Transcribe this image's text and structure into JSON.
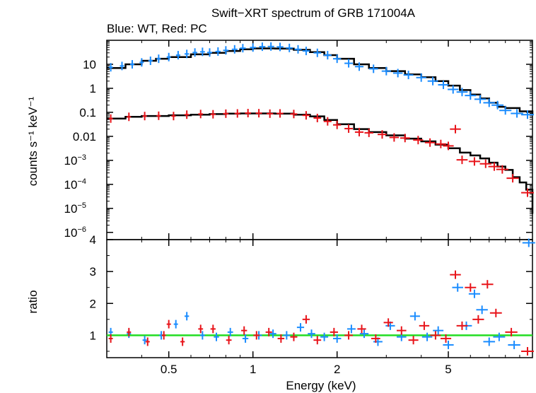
{
  "chart_data": [
    {
      "id": "spectrum",
      "type": "scatter",
      "title": "Swift−XRT spectrum of GRB 171004A",
      "subtitle": "Blue: WT, Red: PC",
      "xlabel": "Energy (keV)",
      "ylabel": "counts s⁻¹ keV⁻¹",
      "xscale": "log",
      "yscale": "log",
      "xlim": [
        0.3,
        10
      ],
      "ylim": [
        5e-07,
        100
      ],
      "grid": false,
      "yticks": [
        {
          "value": 10,
          "label": "10",
          "html": false
        },
        {
          "value": 1,
          "label": "1",
          "html": false
        },
        {
          "value": 0.1,
          "label": "0.1",
          "html": false
        },
        {
          "value": 0.01,
          "label": "0.01",
          "html": false
        },
        {
          "value": 0.001,
          "label": "10",
          "exp": "−3"
        },
        {
          "value": 0.0001,
          "label": "10",
          "exp": "−4"
        },
        {
          "value": 1e-05,
          "label": "10",
          "exp": "−5"
        },
        {
          "value": 1e-06,
          "label": "10",
          "exp": "−6"
        }
      ],
      "series": [
        {
          "name": "WT",
          "color": "#1a8cff",
          "points": [
            [
              0.31,
              7.5
            ],
            [
              0.34,
              8.5
            ],
            [
              0.37,
              10
            ],
            [
              0.4,
              12
            ],
            [
              0.43,
              14
            ],
            [
              0.46,
              17
            ],
            [
              0.5,
              20
            ],
            [
              0.54,
              24
            ],
            [
              0.58,
              27
            ],
            [
              0.62,
              31
            ],
            [
              0.66,
              33
            ],
            [
              0.7,
              31
            ],
            [
              0.75,
              34
            ],
            [
              0.8,
              38
            ],
            [
              0.86,
              42
            ],
            [
              0.92,
              47
            ],
            [
              1.0,
              50
            ],
            [
              1.08,
              54
            ],
            [
              1.16,
              55
            ],
            [
              1.25,
              53
            ],
            [
              1.35,
              48
            ],
            [
              1.45,
              42
            ],
            [
              1.55,
              36
            ],
            [
              1.7,
              30
            ],
            [
              1.85,
              24
            ],
            [
              2.0,
              17
            ],
            [
              2.2,
              11
            ],
            [
              2.4,
              8
            ],
            [
              2.7,
              6.5
            ],
            [
              3.0,
              5.2
            ],
            [
              3.3,
              4.3
            ],
            [
              3.6,
              3.6
            ],
            [
              4.0,
              2.8
            ],
            [
              4.4,
              2.0
            ],
            [
              4.8,
              1.4
            ],
            [
              5.2,
              0.9
            ],
            [
              5.6,
              0.7
            ],
            [
              6.0,
              0.5
            ],
            [
              6.5,
              0.35
            ],
            [
              7.0,
              0.25
            ],
            [
              7.5,
              0.2
            ],
            [
              8.0,
              0.12
            ],
            [
              8.8,
              0.09
            ],
            [
              9.6,
              0.08
            ]
          ],
          "model": [
            [
              0.3,
              7
            ],
            [
              0.35,
              10
            ],
            [
              0.4,
              14
            ],
            [
              0.45,
              17
            ],
            [
              0.5,
              20
            ],
            [
              0.6,
              26
            ],
            [
              0.7,
              30
            ],
            [
              0.8,
              36
            ],
            [
              0.9,
              42
            ],
            [
              1.0,
              46
            ],
            [
              1.2,
              45
            ],
            [
              1.4,
              40
            ],
            [
              1.6,
              32
            ],
            [
              1.8,
              24
            ],
            [
              2.0,
              17
            ],
            [
              2.3,
              10
            ],
            [
              2.6,
              7
            ],
            [
              3.0,
              5.2
            ],
            [
              3.5,
              3.8
            ],
            [
              4.0,
              2.9
            ],
            [
              4.5,
              2.0
            ],
            [
              5.0,
              1.3
            ],
            [
              5.5,
              0.85
            ],
            [
              6.0,
              0.55
            ],
            [
              6.5,
              0.38
            ],
            [
              7.0,
              0.25
            ],
            [
              7.5,
              0.17
            ],
            [
              8.0,
              0.15
            ],
            [
              9.0,
              0.11
            ],
            [
              10,
              0.08
            ]
          ]
        },
        {
          "name": "PC",
          "color": "#e8141a",
          "points": [
            [
              0.31,
              0.055
            ],
            [
              0.36,
              0.065
            ],
            [
              0.41,
              0.07
            ],
            [
              0.46,
              0.072
            ],
            [
              0.52,
              0.07
            ],
            [
              0.58,
              0.08
            ],
            [
              0.65,
              0.085
            ],
            [
              0.72,
              0.083
            ],
            [
              0.8,
              0.088
            ],
            [
              0.88,
              0.09
            ],
            [
              0.96,
              0.093
            ],
            [
              1.05,
              0.092
            ],
            [
              1.15,
              0.088
            ],
            [
              1.25,
              0.09
            ],
            [
              1.4,
              0.085
            ],
            [
              1.55,
              0.075
            ],
            [
              1.7,
              0.058
            ],
            [
              1.85,
              0.042
            ],
            [
              2.0,
              0.03
            ],
            [
              2.2,
              0.021
            ],
            [
              2.4,
              0.015
            ],
            [
              2.6,
              0.014
            ],
            [
              2.9,
              0.012
            ],
            [
              3.2,
              0.009
            ],
            [
              3.5,
              0.0085
            ],
            [
              3.9,
              0.007
            ],
            [
              4.3,
              0.0055
            ],
            [
              4.7,
              0.0048
            ],
            [
              5.0,
              0.004
            ],
            [
              5.3,
              0.02
            ],
            [
              5.6,
              0.00105
            ],
            [
              6.2,
              0.0009
            ],
            [
              6.8,
              0.00072
            ],
            [
              7.3,
              0.00055
            ],
            [
              7.8,
              0.00042
            ],
            [
              8.5,
              0.00018
            ],
            [
              9.6,
              4.5e-05
            ]
          ],
          "model": [
            [
              0.3,
              0.055
            ],
            [
              0.35,
              0.065
            ],
            [
              0.4,
              0.07
            ],
            [
              0.5,
              0.075
            ],
            [
              0.6,
              0.08
            ],
            [
              0.7,
              0.085
            ],
            [
              0.8,
              0.088
            ],
            [
              0.9,
              0.09
            ],
            [
              1.0,
              0.09
            ],
            [
              1.2,
              0.088
            ],
            [
              1.4,
              0.08
            ],
            [
              1.6,
              0.068
            ],
            [
              1.8,
              0.048
            ],
            [
              2.0,
              0.032
            ],
            [
              2.3,
              0.02
            ],
            [
              2.6,
              0.015
            ],
            [
              3.0,
              0.011
            ],
            [
              3.5,
              0.008
            ],
            [
              4.0,
              0.0062
            ],
            [
              4.5,
              0.0045
            ],
            [
              5.0,
              0.0032
            ],
            [
              5.5,
              0.0021
            ],
            [
              6.0,
              0.0016
            ],
            [
              6.5,
              0.0012
            ],
            [
              7.0,
              0.0008
            ],
            [
              7.5,
              0.00055
            ],
            [
              8.0,
              0.0004
            ],
            [
              8.5,
              0.0002
            ],
            [
              9.0,
              0.00012
            ],
            [
              9.5,
              6e-05
            ],
            [
              10,
              6e-06
            ]
          ]
        }
      ]
    },
    {
      "id": "ratio",
      "type": "scatter",
      "xlabel": "Energy (keV)",
      "ylabel": "ratio",
      "xscale": "log",
      "yscale": "linear",
      "xlim": [
        0.3,
        10
      ],
      "ylim": [
        0.3,
        4
      ],
      "xticks": [
        {
          "value": 0.5,
          "label": "0.5"
        },
        {
          "value": 1,
          "label": "1"
        },
        {
          "value": 2,
          "label": "2"
        },
        {
          "value": 5,
          "label": "5"
        }
      ],
      "yticks": [
        {
          "value": 1,
          "label": "1"
        },
        {
          "value": 2,
          "label": "2"
        },
        {
          "value": 3,
          "label": "3"
        },
        {
          "value": 4,
          "label": "4"
        }
      ],
      "reference_line": {
        "value": 1,
        "color": "#22dd22"
      },
      "series": [
        {
          "name": "WT",
          "color": "#1a8cff",
          "points": [
            [
              0.31,
              1.1
            ],
            [
              0.36,
              1.05
            ],
            [
              0.41,
              0.85
            ],
            [
              0.47,
              1.0
            ],
            [
              0.53,
              1.35
            ],
            [
              0.58,
              1.6
            ],
            [
              0.66,
              1.0
            ],
            [
              0.74,
              0.95
            ],
            [
              0.83,
              1.1
            ],
            [
              0.94,
              0.9
            ],
            [
              1.05,
              1.0
            ],
            [
              1.18,
              1.05
            ],
            [
              1.32,
              1.0
            ],
            [
              1.48,
              1.25
            ],
            [
              1.62,
              1.05
            ],
            [
              1.8,
              0.95
            ],
            [
              2.0,
              0.9
            ],
            [
              2.25,
              1.2
            ],
            [
              2.5,
              1.05
            ],
            [
              2.8,
              0.8
            ],
            [
              3.1,
              1.3
            ],
            [
              3.4,
              0.95
            ],
            [
              3.8,
              1.6
            ],
            [
              4.2,
              0.95
            ],
            [
              4.6,
              1.15
            ],
            [
              5.0,
              0.7
            ],
            [
              5.4,
              2.5
            ],
            [
              5.8,
              1.3
            ],
            [
              6.2,
              2.3
            ],
            [
              6.6,
              1.8
            ],
            [
              7.0,
              0.8
            ],
            [
              7.6,
              0.95
            ],
            [
              8.6,
              0.7
            ],
            [
              9.7,
              3.9
            ]
          ]
        },
        {
          "name": "PC",
          "color": "#e8141a",
          "points": [
            [
              0.31,
              0.9
            ],
            [
              0.36,
              1.1
            ],
            [
              0.42,
              0.8
            ],
            [
              0.48,
              1.0
            ],
            [
              0.5,
              1.35
            ],
            [
              0.56,
              0.8
            ],
            [
              0.65,
              1.2
            ],
            [
              0.72,
              1.2
            ],
            [
              0.82,
              0.85
            ],
            [
              0.93,
              1.15
            ],
            [
              1.03,
              1.0
            ],
            [
              1.14,
              1.1
            ],
            [
              1.26,
              0.9
            ],
            [
              1.4,
              0.95
            ],
            [
              1.55,
              1.5
            ],
            [
              1.7,
              0.85
            ],
            [
              1.95,
              1.1
            ],
            [
              2.2,
              1.0
            ],
            [
              2.45,
              1.2
            ],
            [
              2.75,
              0.9
            ],
            [
              3.05,
              1.4
            ],
            [
              3.4,
              1.15
            ],
            [
              3.75,
              0.85
            ],
            [
              4.1,
              1.3
            ],
            [
              4.5,
              1.0
            ],
            [
              4.9,
              0.9
            ],
            [
              5.3,
              2.9
            ],
            [
              5.6,
              1.3
            ],
            [
              6.0,
              2.5
            ],
            [
              6.4,
              1.5
            ],
            [
              6.9,
              2.6
            ],
            [
              7.4,
              1.7
            ],
            [
              8.4,
              1.1
            ],
            [
              9.6,
              0.5
            ]
          ]
        }
      ]
    }
  ]
}
